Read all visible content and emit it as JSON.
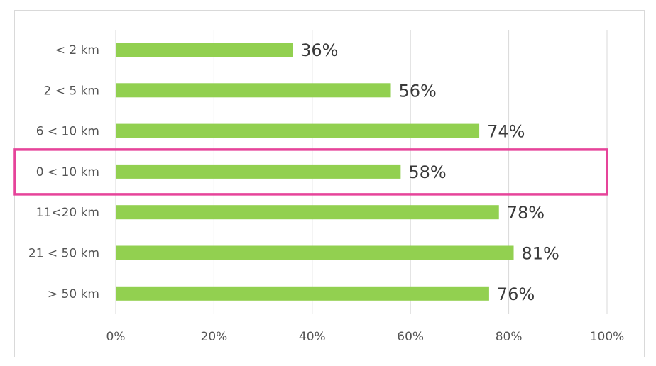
{
  "chart_data": {
    "type": "bar",
    "orientation": "horizontal",
    "categories": [
      "< 2 km",
      "2 < 5 km",
      "6 < 10 km",
      "0 < 10 km",
      "11<20 km",
      "21 < 50 km",
      "> 50 km"
    ],
    "values": [
      36,
      56,
      74,
      58,
      78,
      81,
      76
    ],
    "data_labels": [
      "36%",
      "56%",
      "74%",
      "58%",
      "78%",
      "81%",
      "76%"
    ],
    "xlim": [
      0,
      100
    ],
    "xticks": [
      0,
      20,
      40,
      60,
      80,
      100
    ],
    "xtick_labels": [
      "0%",
      "20%",
      "40%",
      "60%",
      "80%",
      "100%"
    ],
    "title": "",
    "xlabel": "",
    "ylabel": "",
    "grid": "vertical",
    "legend": "none",
    "highlighted_category": "0 < 10 km"
  },
  "colors": {
    "bar": "#92d050",
    "highlight_border": "#e6449a",
    "gridline": "#d9d9d9"
  }
}
